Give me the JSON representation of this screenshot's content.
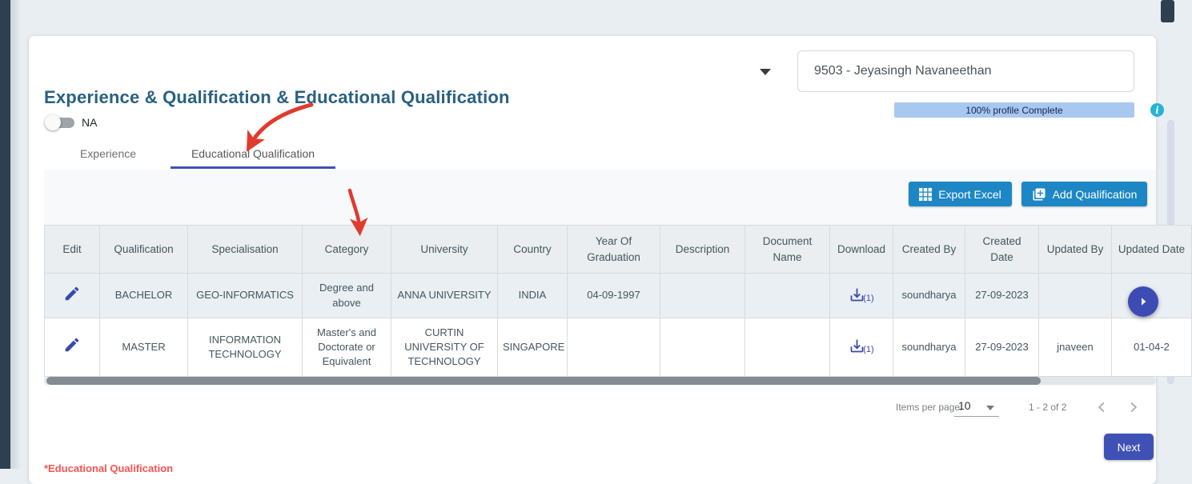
{
  "header": {
    "title": "Experience & Qualification & Educational Qualification",
    "na_toggle_label": "NA",
    "employee_selector_value": "9503 - Jeyasingh Navaneethan",
    "progress": {
      "label": "100% profile Complete",
      "percent": 100,
      "bar_color": "#a9c8ef"
    },
    "info_icon": "info-icon"
  },
  "tabs": [
    {
      "label": "Experience",
      "active": false
    },
    {
      "label": "Educational Qualification",
      "active": true
    }
  ],
  "toolbar": {
    "export_excel_label": "Export Excel",
    "add_qualification_label": "Add Qualification",
    "button_color": "#1d87c5"
  },
  "table": {
    "columns": [
      "Edit",
      "Qualification",
      "Specialisation",
      "Category",
      "University",
      "Country",
      "Year Of Graduation",
      "Description",
      "Document Name",
      "Download",
      "Created By",
      "Created Date",
      "Updated By",
      "Updated Date"
    ],
    "rows": [
      {
        "qualification": "BACHELOR",
        "specialisation": "GEO-INFORMATICS",
        "category": "Degree and above",
        "university": "ANNA UNIVERSITY",
        "country": "INDIA",
        "year_of_graduation": "04-09-1997",
        "description": "",
        "document_name": "",
        "download": "(1)",
        "created_by": "soundharya",
        "created_date": "27-09-2023",
        "updated_by": "",
        "updated_date": ""
      },
      {
        "qualification": "MASTER",
        "specialisation": "INFORMATION TECHNOLOGY",
        "category": "Master's and Doctorate or Equivalent",
        "university": "CURTIN UNIVERSITY OF TECHNOLOGY",
        "country": "SINGAPORE",
        "year_of_graduation": "",
        "description": "",
        "document_name": "",
        "download": "(1)",
        "created_by": "soundharya",
        "created_date": "27-09-2023",
        "updated_by": "jnaveen",
        "updated_date": "01-04-2"
      }
    ]
  },
  "paginator": {
    "items_per_page_label": "Items per page:",
    "items_per_page_value": "10",
    "range_label": "1 - 2 of 2"
  },
  "footer": {
    "next_label": "Next",
    "note": "*Educational Qualification"
  },
  "annotations": {
    "arrow_color": "#e23a2e",
    "arrows": [
      "arrow-to-educational-tab",
      "arrow-to-category-column"
    ]
  },
  "colors": {
    "accent_blue": "#1d87c5",
    "indigo": "#3f51b5",
    "icon_indigo": "#3949ab",
    "title_teal": "#2a6180"
  }
}
